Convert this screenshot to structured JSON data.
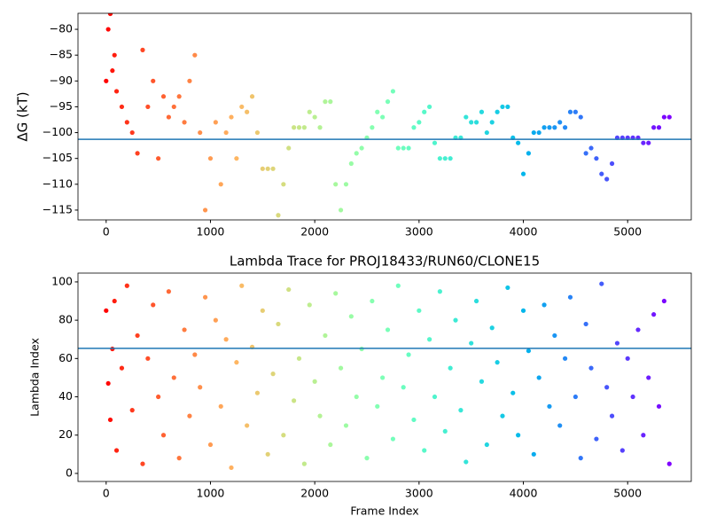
{
  "chart_data": [
    {
      "type": "scatter",
      "ylabel": "ΔG (kT)",
      "colormap": "rainbow_r",
      "hline": -101.3,
      "hline_color": "#1f77b4",
      "xlim": [
        -270,
        5610
      ],
      "ylim": [
        -116.9,
        -76.9
      ],
      "xticks": [
        0,
        1000,
        2000,
        3000,
        4000,
        5000
      ],
      "yticks": [
        {
          "value": -80,
          "label": "−80"
        },
        {
          "value": -85,
          "label": "−85"
        },
        {
          "value": -90,
          "label": "−90"
        },
        {
          "value": -95,
          "label": "−95"
        },
        {
          "value": -100,
          "label": "−100"
        },
        {
          "value": -105,
          "label": "−105"
        },
        {
          "value": -110,
          "label": "−110"
        },
        {
          "value": -115,
          "label": "−115"
        }
      ],
      "x": [
        0,
        20,
        40,
        60,
        80,
        100,
        150,
        200,
        250,
        300,
        350,
        400,
        450,
        500,
        550,
        600,
        650,
        700,
        750,
        800,
        850,
        900,
        950,
        1000,
        1050,
        1100,
        1150,
        1200,
        1250,
        1300,
        1350,
        1400,
        1450,
        1500,
        1550,
        1600,
        1650,
        1700,
        1750,
        1800,
        1850,
        1900,
        1950,
        2000,
        2050,
        2100,
        2150,
        2200,
        2250,
        2300,
        2350,
        2400,
        2450,
        2500,
        2550,
        2600,
        2650,
        2700,
        2750,
        2800,
        2850,
        2900,
        2950,
        3000,
        3050,
        3100,
        3150,
        3200,
        3250,
        3300,
        3350,
        3400,
        3450,
        3500,
        3550,
        3600,
        3650,
        3700,
        3750,
        3800,
        3850,
        3900,
        3950,
        4000,
        4050,
        4100,
        4150,
        4200,
        4250,
        4300,
        4350,
        4400,
        4450,
        4500,
        4550,
        4600,
        4650,
        4700,
        4750,
        4800,
        4850,
        4900,
        4950,
        5000,
        5050,
        5100,
        5150,
        5200,
        5250,
        5300,
        5350,
        5400
      ],
      "values": [
        -90,
        -80,
        -77,
        -88,
        -85,
        -92,
        -95,
        -98,
        -100,
        -104,
        -84,
        -95,
        -90,
        -105,
        -93,
        -97,
        -95,
        -93,
        -98,
        -90,
        -85,
        -100,
        -115,
        -105,
        -98,
        -110,
        -100,
        -97,
        -105,
        -95,
        -96,
        -93,
        -100,
        -107,
        -107,
        -107,
        -116,
        -110,
        -103,
        -99,
        -99,
        -99,
        -96,
        -97,
        -99,
        -94,
        -94,
        -110,
        -115,
        -110,
        -106,
        -104,
        -103,
        -101,
        -99,
        -96,
        -97,
        -94,
        -92,
        -103,
        -103,
        -103,
        -99,
        -98,
        -96,
        -95,
        -102,
        -105,
        -105,
        -105,
        -101,
        -101,
        -97,
        -98,
        -98,
        -96,
        -100,
        -98,
        -96,
        -95,
        -95,
        -101,
        -102,
        -108,
        -104,
        -100,
        -100,
        -99,
        -99,
        -99,
        -98,
        -99,
        -96,
        -96,
        -97,
        -104,
        -103,
        -105,
        -108,
        -109,
        -106,
        -101,
        -101,
        -101,
        -101,
        -101,
        -102,
        -102,
        -99,
        -99,
        -97,
        -97
      ]
    },
    {
      "type": "scatter",
      "title": "Lambda Trace for PROJ18433/RUN60/CLONE15",
      "xlabel": "Frame Index",
      "ylabel": "Lambda Index",
      "colormap": "rainbow_r",
      "hline": 65.3,
      "hline_color": "#1f77b4",
      "xlim": [
        -270,
        5610
      ],
      "ylim": [
        -4.2,
        104.6
      ],
      "xticks": [
        0,
        1000,
        2000,
        3000,
        4000,
        5000
      ],
      "yticks": [
        0,
        20,
        40,
        60,
        80,
        100
      ],
      "x": [
        0,
        20,
        40,
        60,
        80,
        100,
        150,
        200,
        250,
        300,
        350,
        400,
        450,
        500,
        550,
        600,
        650,
        700,
        750,
        800,
        850,
        900,
        950,
        1000,
        1050,
        1100,
        1150,
        1200,
        1250,
        1300,
        1350,
        1400,
        1450,
        1500,
        1550,
        1600,
        1650,
        1700,
        1750,
        1800,
        1850,
        1900,
        1950,
        2000,
        2050,
        2100,
        2150,
        2200,
        2250,
        2300,
        2350,
        2400,
        2450,
        2500,
        2550,
        2600,
        2650,
        2700,
        2750,
        2800,
        2850,
        2900,
        2950,
        3000,
        3050,
        3100,
        3150,
        3200,
        3250,
        3300,
        3350,
        3400,
        3450,
        3500,
        3550,
        3600,
        3650,
        3700,
        3750,
        3800,
        3850,
        3900,
        3950,
        4000,
        4050,
        4100,
        4150,
        4200,
        4250,
        4300,
        4350,
        4400,
        4450,
        4500,
        4550,
        4600,
        4650,
        4700,
        4750,
        4800,
        4850,
        4900,
        4950,
        5000,
        5050,
        5100,
        5150,
        5200,
        5250,
        5300,
        5350,
        5400
      ],
      "values": [
        85,
        47,
        28,
        65,
        90,
        12,
        55,
        98,
        33,
        72,
        5,
        60,
        88,
        40,
        20,
        95,
        50,
        8,
        75,
        30,
        62,
        45,
        92,
        15,
        80,
        35,
        70,
        3,
        58,
        98,
        25,
        66,
        42,
        85,
        10,
        52,
        78,
        20,
        96,
        38,
        60,
        5,
        88,
        48,
        30,
        72,
        15,
        94,
        55,
        25,
        82,
        40,
        65,
        8,
        90,
        35,
        50,
        75,
        18,
        98,
        45,
        62,
        28,
        85,
        12,
        70,
        40,
        95,
        22,
        55,
        80,
        33,
        6,
        68,
        90,
        48,
        15,
        76,
        58,
        30,
        97,
        42,
        20,
        85,
        64,
        10,
        50,
        88,
        35,
        72,
        25,
        60,
        92,
        40,
        8,
        78,
        55,
        18,
        99,
        45,
        30,
        68,
        12,
        60,
        40,
        75,
        20,
        50,
        83,
        35,
        90,
        5
      ]
    }
  ]
}
